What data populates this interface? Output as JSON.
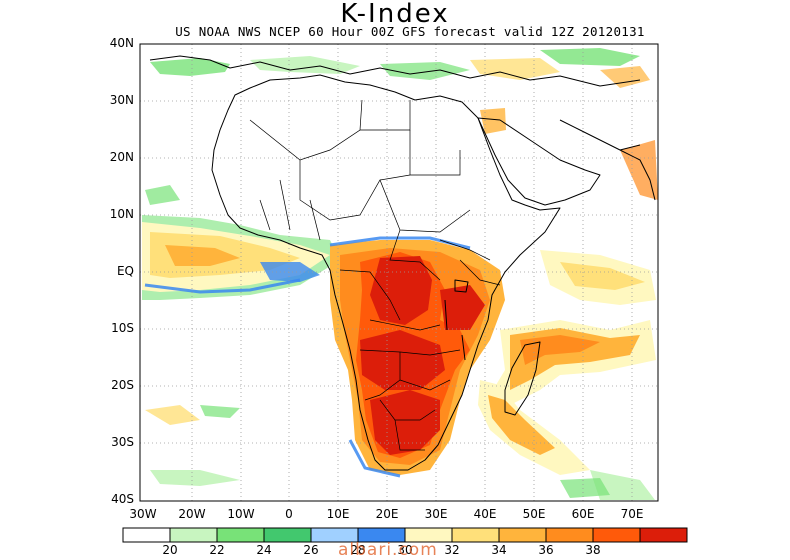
{
  "title": "K-Index",
  "subtitle": "US NOAA NWS NCEP 60 Hour 00Z GFS forecast valid 12Z 20120131",
  "lat_labels": [
    "40N",
    "30N",
    "20N",
    "10N",
    "EQ",
    "10S",
    "20S",
    "30S",
    "40S"
  ],
  "lon_labels": [
    "30W",
    "20W",
    "10W",
    "0",
    "10E",
    "20E",
    "30E",
    "40E",
    "50E",
    "60E",
    "70E"
  ],
  "legend": {
    "colors": [
      "#ffffff",
      "#c8f5c0",
      "#78e278",
      "#42c86e",
      "#a0d0ff",
      "#3a88f0",
      "#fff8c0",
      "#ffe07a",
      "#ffb43c",
      "#ff8c1e",
      "#ff5a0a",
      "#dc1e0a"
    ],
    "labels": [
      "20",
      "22",
      "24",
      "26",
      "28",
      "30",
      "32",
      "34",
      "36",
      "38"
    ]
  },
  "watermark": "albari.com"
}
